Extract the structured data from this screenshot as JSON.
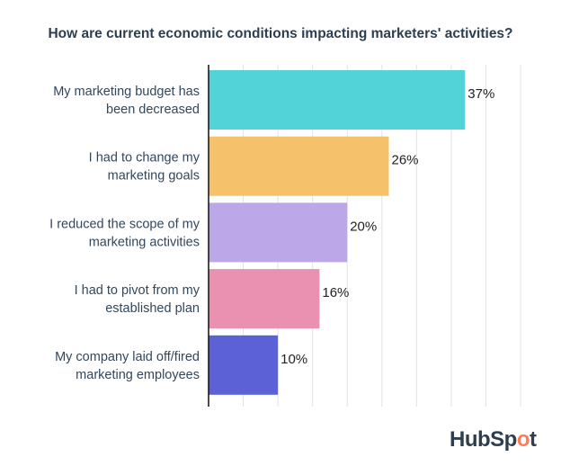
{
  "chart_data": {
    "type": "bar",
    "orientation": "horizontal",
    "title": "How are current economic conditions impacting marketers' activities?",
    "categories": [
      [
        "My marketing budget has",
        "been decreased"
      ],
      [
        "I had to change my",
        "marketing goals"
      ],
      [
        "I reduced the scope of my",
        "marketing activities"
      ],
      [
        "I had to pivot from my",
        "established plan"
      ],
      [
        "My company laid off/fired",
        "marketing employees"
      ]
    ],
    "values": [
      37,
      26,
      20,
      16,
      10
    ],
    "data_labels": [
      "37%",
      "26%",
      "20%",
      "16%",
      "10%"
    ],
    "colors": [
      "#52d3d8",
      "#f5c26b",
      "#bca8e8",
      "#ea90b1",
      "#5c62d6"
    ],
    "xlim": [
      0,
      45
    ],
    "grid_step": 5,
    "grid": true
  },
  "brand": {
    "logo_text": "HubSpot",
    "accent": "#ff7a59"
  }
}
